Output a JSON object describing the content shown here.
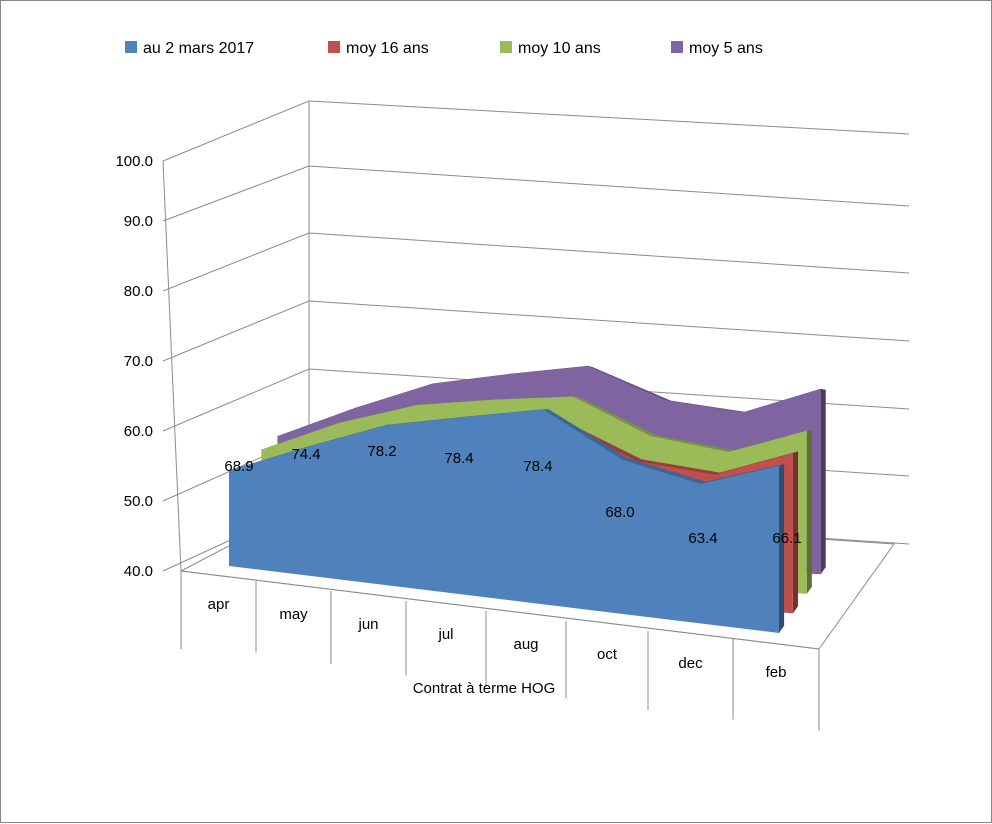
{
  "chart_data": {
    "type": "area",
    "subtype": "3d-area",
    "title": "",
    "xlabel": "Contrat à terme  HOG",
    "ylabel": "",
    "ylim": [
      40,
      100
    ],
    "yticks": [
      "40.0",
      "50.0",
      "60.0",
      "70.0",
      "80.0",
      "90.0",
      "100.0"
    ],
    "categories": [
      "apr",
      "may",
      "jun",
      "jul",
      "aug",
      "oct",
      "dec",
      "feb"
    ],
    "legend_position": "top",
    "grid": true,
    "series": [
      {
        "name": "au 2 mars 2017",
        "color": "#4f81bd",
        "values": [
          68.9,
          74.4,
          78.2,
          78.4,
          78.4,
          68.0,
          63.4,
          66.1
        ],
        "labels": [
          "68.9",
          "74.4",
          "78.2",
          "78.4",
          "78.4",
          "68.0",
          "63.4",
          "66.1"
        ]
      },
      {
        "name": "moy 16 ans",
        "color": "#c0504d",
        "values": [
          68.5,
          74.0,
          77.5,
          77.0,
          76.0,
          67.0,
          64.0,
          67.5
        ]
      },
      {
        "name": "moy 10 ans",
        "color": "#9bbb59",
        "values": [
          73.5,
          80.0,
          83.0,
          82.5,
          81.5,
          71.5,
          67.5,
          71.0
        ]
      },
      {
        "name": "moy 5 ans",
        "color": "#8064a2",
        "values": [
          77.0,
          84.0,
          89.0,
          89.5,
          89.5,
          79.5,
          75.5,
          79.5
        ]
      }
    ]
  }
}
